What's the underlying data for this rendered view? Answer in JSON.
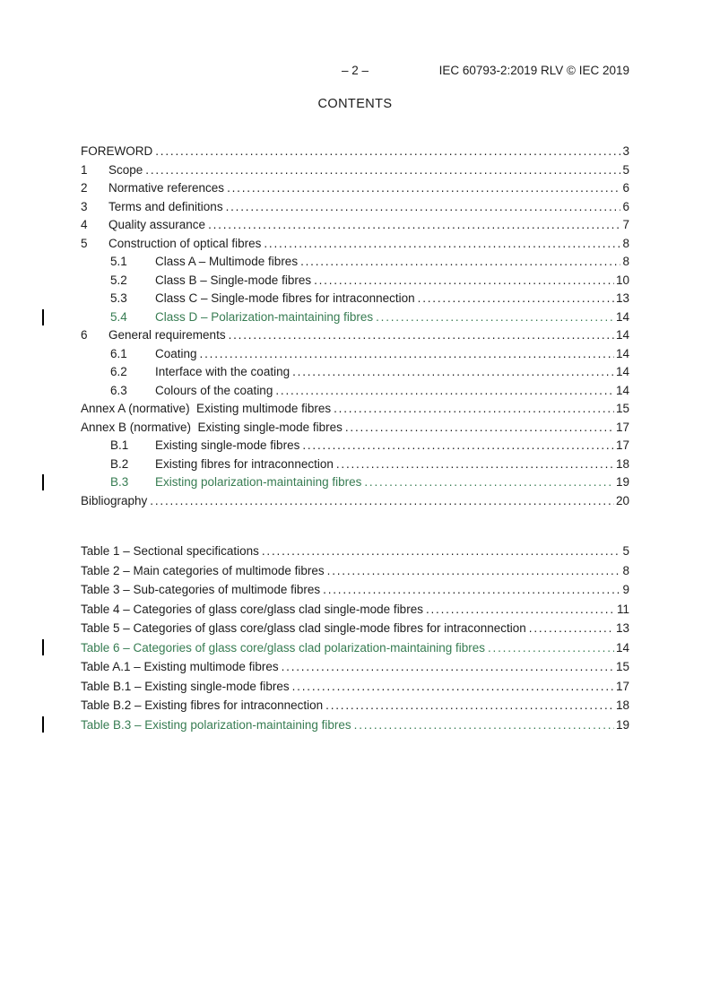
{
  "header": {
    "page_number": "– 2 –",
    "doc_ref": "IEC 60793-2:2019 RLV © IEC 2019"
  },
  "title": "CONTENTS",
  "colors": {
    "text": "#1c1c1c",
    "changed_green": "#377c52",
    "change_bar": "#000000"
  },
  "toc_sections": [
    {
      "level": 0,
      "num": "",
      "title": "FOREWORD",
      "page": "3",
      "changed": false
    },
    {
      "level": 1,
      "num": "1",
      "title": "Scope",
      "page": "5",
      "changed": false
    },
    {
      "level": 1,
      "num": "2",
      "title": "Normative references",
      "page": "6",
      "changed": false
    },
    {
      "level": 1,
      "num": "3",
      "title": "Terms and definitions",
      "page": "6",
      "changed": false
    },
    {
      "level": 1,
      "num": "4",
      "title": "Quality assurance",
      "page": "7",
      "changed": false
    },
    {
      "level": 1,
      "num": "5",
      "title": "Construction of optical fibres",
      "page": "8",
      "changed": false
    },
    {
      "level": 2,
      "num": "5.1",
      "title": "Class A – Multimode fibres",
      "page": "8",
      "changed": false
    },
    {
      "level": 2,
      "num": "5.2",
      "title": "Class B – Single-mode fibres",
      "page": "10",
      "changed": false
    },
    {
      "level": 2,
      "num": "5.3",
      "title": "Class C – Single-mode fibres for intraconnection",
      "page": "13",
      "changed": false
    },
    {
      "level": 2,
      "num": "5.4",
      "title": "Class D – Polarization-maintaining fibres",
      "page": "14",
      "changed": true
    },
    {
      "level": 1,
      "num": "6",
      "title": "General requirements",
      "page": "14",
      "changed": false
    },
    {
      "level": 2,
      "num": "6.1",
      "title": "Coating",
      "page": "14",
      "changed": false
    },
    {
      "level": 2,
      "num": "6.2",
      "title": "Interface with the coating",
      "page": "14",
      "changed": false
    },
    {
      "level": 2,
      "num": "6.3",
      "title": "Colours of the coating",
      "page": "14",
      "changed": false
    },
    {
      "level": 0,
      "num": "",
      "title": "Annex A (normative)  Existing multimode fibres",
      "page": "15",
      "changed": false
    },
    {
      "level": 0,
      "num": "",
      "title": "Annex B (normative)  Existing single-mode fibres",
      "page": "17",
      "changed": false
    },
    {
      "level": 2,
      "num": "B.1",
      "title": "Existing single-mode fibres",
      "page": "17",
      "changed": false
    },
    {
      "level": 2,
      "num": "B.2",
      "title": "Existing fibres for intraconnection",
      "page": "18",
      "changed": false
    },
    {
      "level": 2,
      "num": "B.3",
      "title": "Existing polarization-maintaining fibres",
      "page": "19",
      "changed": true
    },
    {
      "level": 0,
      "num": "",
      "title": "Bibliography",
      "page": "20",
      "changed": false
    }
  ],
  "toc_tables": [
    {
      "level": 0,
      "num": "",
      "title": "Table 1 – Sectional specifications",
      "page": "5",
      "changed": false
    },
    {
      "level": 0,
      "num": "",
      "title": "Table 2 – Main categories of multimode fibres",
      "page": "8",
      "changed": false
    },
    {
      "level": 0,
      "num": "",
      "title": "Table 3 – Sub-categories of multimode fibres",
      "page": "9",
      "changed": false
    },
    {
      "level": 0,
      "num": "",
      "title": "Table 4 – Categories of glass core/glass clad single-mode fibres",
      "page": "11",
      "changed": false
    },
    {
      "level": 0,
      "num": "",
      "title": "Table 5 – Categories of glass core/glass clad single-mode fibres for intraconnection",
      "page": "13",
      "changed": false
    },
    {
      "level": 0,
      "num": "",
      "title": "Table 6 – Categories of glass core/glass clad polarization-maintaining fibres",
      "page": "14",
      "changed": true
    },
    {
      "level": 0,
      "num": "",
      "title": "Table A.1 – Existing multimode fibres",
      "page": "15",
      "changed": false
    },
    {
      "level": 0,
      "num": "",
      "title": "Table B.1 – Existing single-mode fibres",
      "page": "17",
      "changed": false
    },
    {
      "level": 0,
      "num": "",
      "title": "Table B.2 – Existing fibres for intraconnection",
      "page": "18",
      "changed": false
    },
    {
      "level": 0,
      "num": "",
      "title": "Table B.3 – Existing polarization-maintaining fibres",
      "page": "19",
      "changed": true
    }
  ]
}
